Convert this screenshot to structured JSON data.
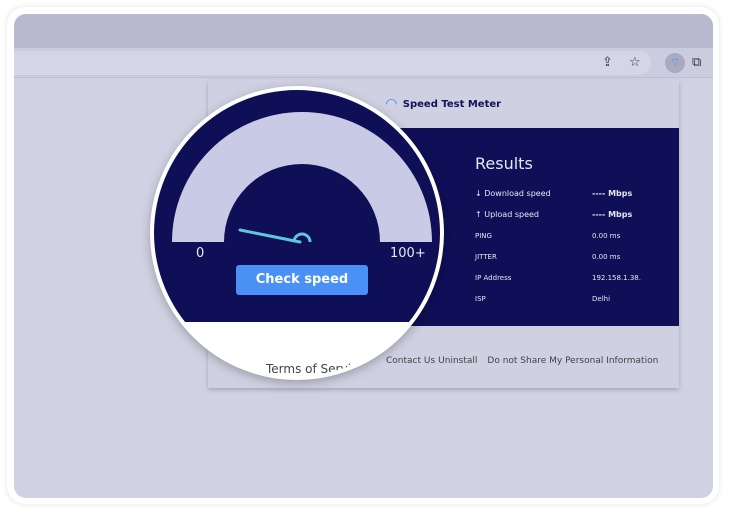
{
  "browser": {
    "icons": [
      "share-icon",
      "star-icon",
      "speedtest-extension-icon",
      "extensions-puzzle-icon"
    ]
  },
  "popup": {
    "title": "Speed Test Meter",
    "results": {
      "title": "Results",
      "rows": [
        {
          "label": "↓ Download speed",
          "value": "---- Mbps"
        },
        {
          "label": "↑ Upload speed",
          "value": "---- Mbps"
        },
        {
          "label": "PING",
          "value": "0.00 ms"
        },
        {
          "label": "JITTER",
          "value": "0.00 ms"
        },
        {
          "label": "IP Address",
          "value": "192.158.1.38."
        },
        {
          "label": "ISP",
          "value": "Delhi"
        }
      ]
    },
    "footer": [
      "Contact Us",
      "Uninstall",
      "Do not Share My Personal Information"
    ]
  },
  "magnifier": {
    "gauge": {
      "min_label": "0",
      "max_label": "100+",
      "value": 0
    },
    "button": "Check speed",
    "footer_link": "Terms of Service"
  },
  "colors": {
    "panel": "#0e0f56",
    "accent": "#4a90f5",
    "gauge": "#c9cbe6",
    "needle": "#5fc6dc"
  }
}
